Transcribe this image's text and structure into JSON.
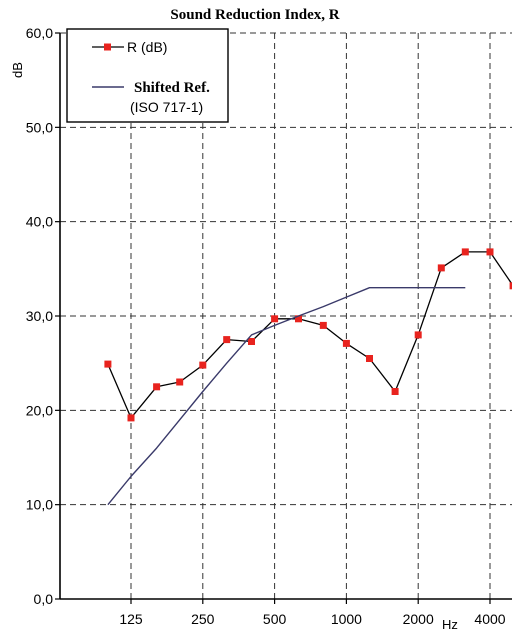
{
  "chart_data": {
    "type": "line",
    "title": "Sound Reduction Index, R",
    "ylabel": "dB",
    "xlabel": "Hz",
    "ylim": [
      0,
      60
    ],
    "yticks": [
      "0,0",
      "10,0",
      "20,0",
      "30,0",
      "40,0",
      "50,0",
      "60,0"
    ],
    "x_scale": "log",
    "xticks": [
      "125",
      "250",
      "500",
      "1000",
      "2000",
      "4000"
    ],
    "grid": true,
    "legend_position": "top-left",
    "series": [
      {
        "name": "R (dB)",
        "color": "#000000",
        "marker_color": "#e8231e",
        "x": [
          100,
          125,
          160,
          200,
          250,
          315,
          400,
          500,
          630,
          800,
          1000,
          1250,
          1600,
          2000,
          2500,
          3150,
          4000,
          5000
        ],
        "y": [
          24.9,
          19.2,
          22.5,
          23.0,
          24.8,
          27.5,
          27.3,
          29.7,
          29.7,
          29.0,
          27.1,
          25.5,
          22.0,
          28.0,
          35.1,
          36.8,
          36.8,
          33.2
        ]
      },
      {
        "name": "Shifted Ref.\n(ISO 717-1)",
        "color": "#3a3a6a",
        "x": [
          100,
          125,
          160,
          200,
          250,
          315,
          400,
          500,
          630,
          800,
          1000,
          1250,
          1600,
          2000,
          2500,
          3150
        ],
        "y": [
          10,
          13,
          16,
          19,
          22,
          25,
          28,
          29,
          30,
          31,
          32,
          33,
          33,
          33,
          33,
          33
        ]
      }
    ],
    "legend": {
      "r_label": "R (dB)",
      "ref_line1": "Shifted Ref.",
      "ref_line2": "(ISO 717-1)"
    }
  }
}
